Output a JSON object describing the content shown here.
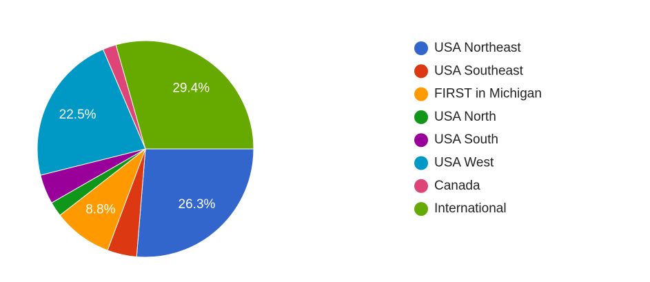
{
  "chart_data": {
    "type": "pie",
    "categories": [
      "USA Northeast",
      "USA Southeast",
      "FIRST in Michigan",
      "USA North",
      "USA South",
      "USA West",
      "Canada",
      "International"
    ],
    "values": [
      26.3,
      4.4,
      8.8,
      2.2,
      4.4,
      22.5,
      2.0,
      29.4
    ],
    "value_labels": [
      "26.3%",
      null,
      "8.8%",
      null,
      null,
      "22.5%",
      null,
      "29.4%"
    ],
    "colors": [
      "#3366cc",
      "#dc3912",
      "#ff9900",
      "#109618",
      "#990099",
      "#0099c6",
      "#dd4477",
      "#66aa00"
    ],
    "legend": "right"
  }
}
